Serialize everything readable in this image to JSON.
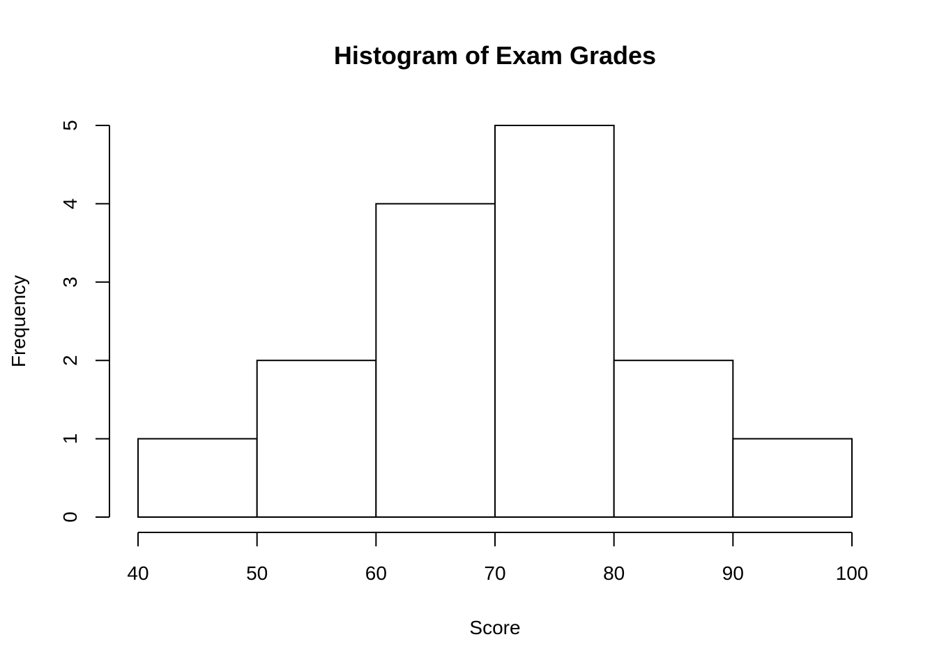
{
  "chart_data": {
    "type": "bar",
    "title": "Histogram of Exam Grades",
    "xlabel": "Score",
    "ylabel": "Frequency",
    "bins": [
      {
        "from": 40,
        "to": 50,
        "count": 1
      },
      {
        "from": 50,
        "to": 60,
        "count": 2
      },
      {
        "from": 60,
        "to": 70,
        "count": 4
      },
      {
        "from": 70,
        "to": 80,
        "count": 5
      },
      {
        "from": 80,
        "to": 90,
        "count": 2
      },
      {
        "from": 90,
        "to": 100,
        "count": 1
      }
    ],
    "x_ticks": [
      "40",
      "50",
      "60",
      "70",
      "80",
      "90",
      "100"
    ],
    "y_ticks": [
      "0",
      "1",
      "2",
      "3",
      "4",
      "5"
    ],
    "xlim": [
      40,
      100
    ],
    "ylim": [
      0,
      5
    ],
    "grid": false,
    "colors": {
      "bar_fill": "#ffffff",
      "bar_stroke": "#000000"
    }
  }
}
